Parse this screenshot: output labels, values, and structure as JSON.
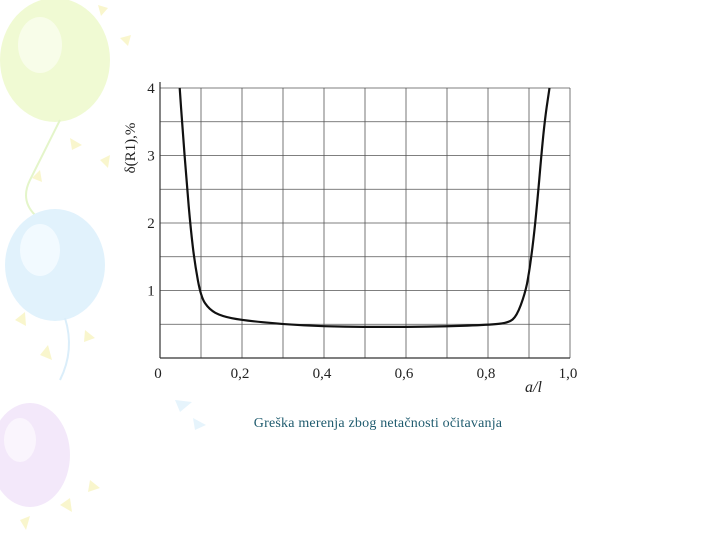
{
  "caption": "Greška merenja zbog netačnosti očitavanja",
  "chart_data": {
    "type": "line",
    "title": "",
    "xlabel": "a/l",
    "ylabel": "δ(R1),%",
    "xlim": [
      0,
      1.0
    ],
    "ylim": [
      0,
      4
    ],
    "x_ticks": [
      {
        "value": 0,
        "label": "0"
      },
      {
        "value": 0.2,
        "label": "0,2"
      },
      {
        "value": 0.4,
        "label": "0,4"
      },
      {
        "value": 0.6,
        "label": "0,6"
      },
      {
        "value": 0.8,
        "label": "0,8"
      },
      {
        "value": 1.0,
        "label": "1,0"
      }
    ],
    "y_ticks": [
      {
        "value": 1,
        "label": "1"
      },
      {
        "value": 2,
        "label": "2"
      },
      {
        "value": 3,
        "label": "3"
      },
      {
        "value": 4,
        "label": "4"
      }
    ],
    "grid": true,
    "series": [
      {
        "name": "δ(R1)",
        "x": [
          0.048,
          0.055,
          0.065,
          0.075,
          0.085,
          0.1,
          0.12,
          0.15,
          0.2,
          0.3,
          0.4,
          0.5,
          0.6,
          0.7,
          0.8,
          0.85,
          0.87,
          0.89,
          0.9,
          0.91,
          0.92,
          0.93,
          0.94,
          0.95
        ],
        "y": [
          4.0,
          3.4,
          2.6,
          1.9,
          1.4,
          0.9,
          0.72,
          0.62,
          0.56,
          0.5,
          0.47,
          0.46,
          0.46,
          0.47,
          0.49,
          0.52,
          0.62,
          0.95,
          1.25,
          1.7,
          2.3,
          3.0,
          3.6,
          4.0
        ]
      }
    ]
  }
}
